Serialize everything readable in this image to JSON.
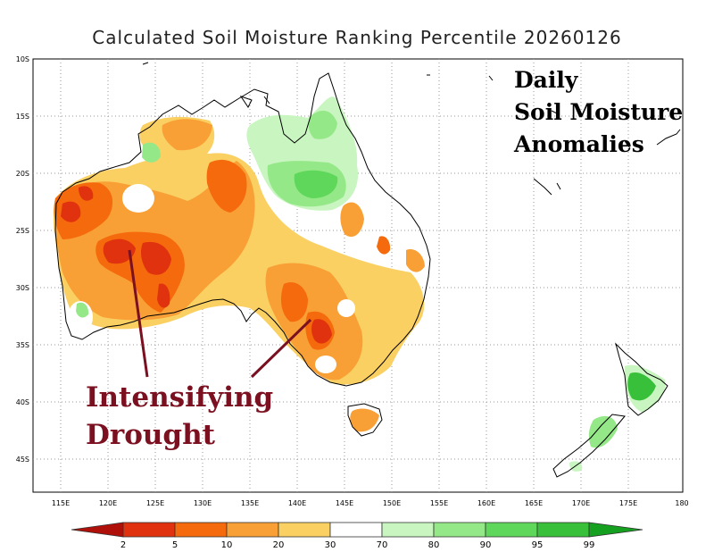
{
  "title": "Calculated Soil Moisture Ranking Percentile 20260126",
  "annotations": {
    "daily": [
      "Daily",
      "Soil Moisture",
      "Anomalies"
    ],
    "drought": [
      "Intensifying",
      "Drought"
    ]
  },
  "axes": {
    "lon_ticks": [
      "115E",
      "120E",
      "125E",
      "130E",
      "135E",
      "140E",
      "145E",
      "150E",
      "155E",
      "160E",
      "165E",
      "170E",
      "175E",
      "180"
    ],
    "lat_ticks": [
      "10S",
      "15S",
      "20S",
      "25S",
      "30S",
      "35S",
      "40S",
      "45S"
    ]
  },
  "colorbar": {
    "labels": [
      "2",
      "5",
      "10",
      "20",
      "30",
      "70",
      "80",
      "90",
      "95",
      "99"
    ],
    "colors": [
      "#b0100a",
      "#e0320e",
      "#f56a0c",
      "#f8a035",
      "#fad063",
      "#f6e38a",
      "#ffffff",
      "#c8f5c0",
      "#95e888",
      "#5fd75a",
      "#38c03a",
      "#16a020"
    ]
  },
  "colors": {
    "severe": "#e0320e",
    "moderate": "#f56a0c",
    "dry": "#f8a035",
    "mild": "#fad063",
    "wet_light": "#c8f5c0",
    "wet_mid": "#95e888",
    "wet_high": "#5fd75a",
    "wet_max": "#38c03a",
    "annotation_red": "#7a1020"
  }
}
